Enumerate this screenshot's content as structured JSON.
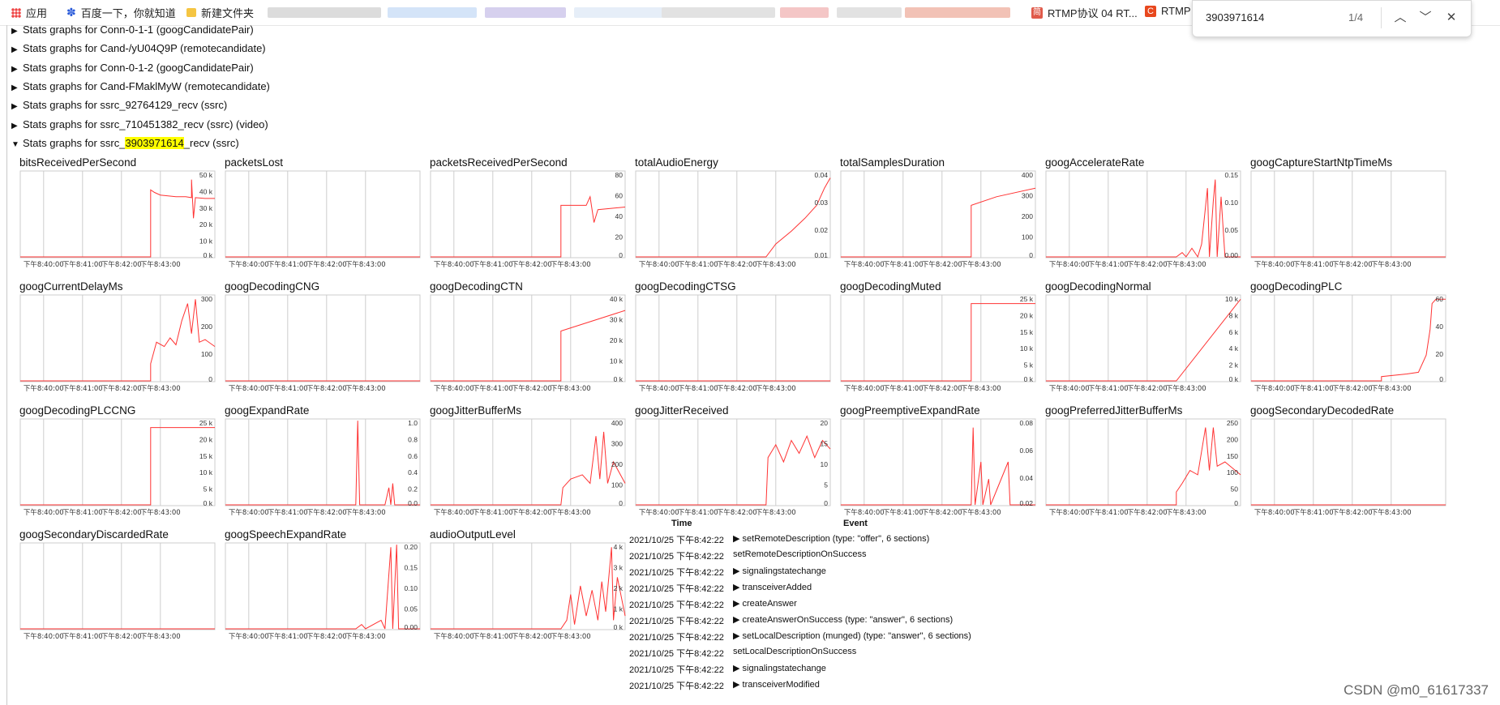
{
  "bookmarks": {
    "apps": "应用",
    "baidu": "百度一下，你就知道",
    "folder": "新建文件夹",
    "rtmp1": "RTMP协议 04 RT...",
    "rtmp2": "RTMP"
  },
  "find": {
    "query": "3903971614",
    "count": "1/4"
  },
  "sections": [
    {
      "arrow": "▶",
      "label": "Stats graphs for Conn-0-1-1 (googCandidatePair)"
    },
    {
      "arrow": "▶",
      "label": "Stats graphs for Cand-/yU04Q9P (remotecandidate)"
    },
    {
      "arrow": "▶",
      "label": "Stats graphs for Conn-0-1-2 (googCandidatePair)"
    },
    {
      "arrow": "▶",
      "label": "Stats graphs for Cand-FMaklMyW (remotecandidate)"
    },
    {
      "arrow": "▶",
      "label": "Stats graphs for ssrc_92764129_recv (ssrc)"
    },
    {
      "arrow": "▶",
      "label": "Stats graphs for ssrc_710451382_recv (ssrc) (video)"
    }
  ],
  "open_section": {
    "arrow": "▼",
    "prefix": "Stats graphs for ssrc_",
    "highlight": "3903971614",
    "suffix": "_recv (ssrc)"
  },
  "time_ticks": [
    "下午8:40:00",
    "下午8:41:00",
    "下午8:42:00",
    "下午8:43:00"
  ],
  "graphs": [
    {
      "title": "bitsReceivedPerSecond",
      "yticks": [
        "50 k",
        "40 k",
        "30 k",
        "20 k",
        "10 k",
        "0 k"
      ]
    },
    {
      "title": "packetsLost",
      "yticks": []
    },
    {
      "title": "packetsReceivedPerSecond",
      "yticks": [
        "80",
        "60",
        "40",
        "20",
        "0"
      ]
    },
    {
      "title": "totalAudioEnergy",
      "yticks": [
        "0.04",
        "0.03",
        "0.02",
        "0.01"
      ]
    },
    {
      "title": "totalSamplesDuration",
      "yticks": [
        "400",
        "300",
        "200",
        "100",
        "0"
      ]
    },
    {
      "title": "googAccelerateRate",
      "yticks": [
        "0.15",
        "0.10",
        "0.05",
        "0.00"
      ]
    },
    {
      "title": "googCaptureStartNtpTimeMs",
      "yticks": []
    },
    {
      "title": "googCurrentDelayMs",
      "yticks": [
        "300",
        "200",
        "100",
        "0"
      ]
    },
    {
      "title": "googDecodingCNG",
      "yticks": []
    },
    {
      "title": "googDecodingCTN",
      "yticks": [
        "40 k",
        "30 k",
        "20 k",
        "10 k",
        "0 k"
      ]
    },
    {
      "title": "googDecodingCTSG",
      "yticks": []
    },
    {
      "title": "googDecodingMuted",
      "yticks": [
        "25 k",
        "20 k",
        "15 k",
        "10 k",
        "5 k",
        "0 k"
      ]
    },
    {
      "title": "googDecodingNormal",
      "yticks": [
        "10 k",
        "8 k",
        "6 k",
        "4 k",
        "2 k",
        "0 k"
      ]
    },
    {
      "title": "googDecodingPLC",
      "yticks": [
        "60",
        "40",
        "20",
        "0"
      ]
    },
    {
      "title": "googDecodingPLCCNG",
      "yticks": [
        "25 k",
        "20 k",
        "15 k",
        "10 k",
        "5 k",
        "0 k"
      ]
    },
    {
      "title": "googExpandRate",
      "yticks": [
        "1.0",
        "0.8",
        "0.6",
        "0.4",
        "0.2",
        "0.0"
      ]
    },
    {
      "title": "googJitterBufferMs",
      "yticks": [
        "400",
        "300",
        "200",
        "100",
        "0"
      ]
    },
    {
      "title": "googJitterReceived",
      "yticks": [
        "20",
        "15",
        "10",
        "5",
        "0"
      ]
    },
    {
      "title": "googPreemptiveExpandRate",
      "yticks": [
        "0.08",
        "0.06",
        "0.04",
        "0.02"
      ]
    },
    {
      "title": "googPreferredJitterBufferMs",
      "yticks": [
        "250",
        "200",
        "150",
        "100",
        "50",
        "0"
      ]
    },
    {
      "title": "googSecondaryDecodedRate",
      "yticks": []
    },
    {
      "title": "googSecondaryDiscardedRate",
      "yticks": []
    },
    {
      "title": "googSpeechExpandRate",
      "yticks": [
        "0.20",
        "0.15",
        "0.10",
        "0.05",
        "0.00"
      ]
    },
    {
      "title": "audioOutputLevel",
      "yticks": [
        "4 k",
        "3 k",
        "2 k",
        "1 k",
        "0 k"
      ]
    }
  ],
  "events": {
    "header_time": "Time",
    "header_event": "Event",
    "rows": [
      {
        "time": "2021/10/25 下午8:42:22",
        "arrow": "▶",
        "event": "setRemoteDescription (type: \"offer\", 6 sections)"
      },
      {
        "time": "2021/10/25 下午8:42:22",
        "arrow": "",
        "event": "setRemoteDescriptionOnSuccess"
      },
      {
        "time": "2021/10/25 下午8:42:22",
        "arrow": "▶",
        "event": "signalingstatechange"
      },
      {
        "time": "2021/10/25 下午8:42:22",
        "arrow": "▶",
        "event": "transceiverAdded"
      },
      {
        "time": "2021/10/25 下午8:42:22",
        "arrow": "▶",
        "event": "createAnswer"
      },
      {
        "time": "2021/10/25 下午8:42:22",
        "arrow": "▶",
        "event": "createAnswerOnSuccess (type: \"answer\", 6 sections)"
      },
      {
        "time": "2021/10/25 下午8:42:22",
        "arrow": "▶",
        "event": "setLocalDescription (munged) (type: \"answer\", 6 sections)"
      },
      {
        "time": "2021/10/25 下午8:42:22",
        "arrow": "",
        "event": "setLocalDescriptionOnSuccess"
      },
      {
        "time": "2021/10/25 下午8:42:22",
        "arrow": "▶",
        "event": "signalingstatechange"
      },
      {
        "time": "2021/10/25 下午8:42:22",
        "arrow": "▶",
        "event": "transceiverModified"
      }
    ]
  },
  "watermark": "CSDN @m0_61617337",
  "colors": {
    "line": "#ff3333",
    "grid": "#cccccc",
    "highlight": "#ffff00"
  }
}
